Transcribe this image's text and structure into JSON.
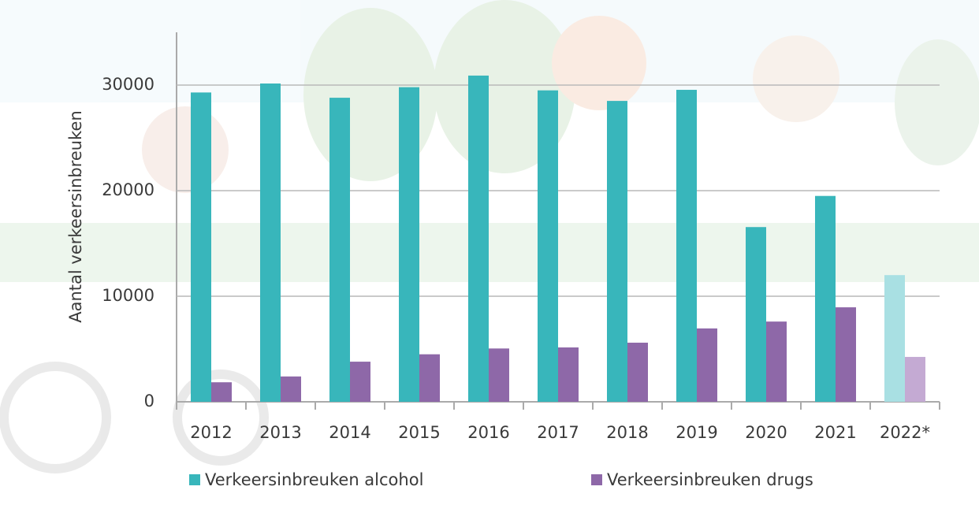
{
  "chart_data": {
    "type": "bar",
    "y_label": "Aantal verkeersinbreuken",
    "categories": [
      "2012",
      "2013",
      "2014",
      "2015",
      "2016",
      "2017",
      "2018",
      "2019",
      "2020",
      "2021",
      "2022*"
    ],
    "series": [
      {
        "name": "Verkeersinbreuken alcohol",
        "color": "#38b6bb",
        "colors": [
          "#38b6bb",
          "#38b6bb",
          "#38b6bb",
          "#38b6bb",
          "#38b6bb",
          "#38b6bb",
          "#38b6bb",
          "#38b6bb",
          "#38b6bb",
          "#38b6bb",
          "#a9e0e3"
        ],
        "values": [
          29300,
          30150,
          28800,
          29800,
          30900,
          29500,
          28500,
          29550,
          16550,
          19500,
          12000
        ]
      },
      {
        "name": "Verkeersinbreuken drugs",
        "color": "#8e68a8",
        "colors": [
          "#8e68a8",
          "#8e68a8",
          "#8e68a8",
          "#8e68a8",
          "#8e68a8",
          "#8e68a8",
          "#8e68a8",
          "#8e68a8",
          "#8e68a8",
          "#8e68a8",
          "#c4aad3"
        ],
        "values": [
          1850,
          2400,
          3800,
          4500,
          5050,
          5150,
          5600,
          6950,
          7600,
          8950,
          4250
        ]
      }
    ],
    "ylim": [
      0,
      35000
    ],
    "yticks": [
      0,
      10000,
      20000,
      30000
    ],
    "grid": true,
    "legend": "bottom"
  }
}
